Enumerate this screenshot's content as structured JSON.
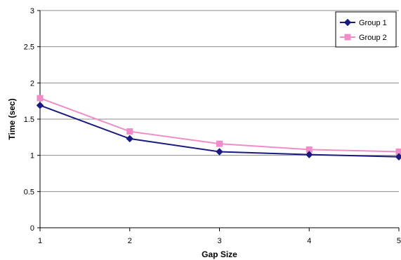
{
  "chart_data": {
    "type": "line",
    "xlabel": "Gap Size",
    "ylabel": "Time (sec)",
    "x": [
      1,
      2,
      3,
      4,
      5
    ],
    "x_tick_labels": [
      "1",
      "2",
      "3",
      "4",
      "5"
    ],
    "ylim": [
      0,
      3
    ],
    "y_ticks": [
      0,
      0.5,
      1,
      1.5,
      2,
      2.5,
      3
    ],
    "y_tick_labels": [
      "0",
      "0.5",
      "1",
      "1.5",
      "2",
      "2.5",
      "3"
    ],
    "grid": "horizontal",
    "legend_position": "top-right",
    "series": [
      {
        "name": "Group 1",
        "values": [
          1.69,
          1.23,
          1.05,
          1.01,
          0.98
        ],
        "color": "#1a1a80",
        "marker": "diamond"
      },
      {
        "name": "Group 2",
        "values": [
          1.79,
          1.33,
          1.16,
          1.08,
          1.05
        ],
        "color": "#f08cc8",
        "marker": "square"
      }
    ]
  }
}
